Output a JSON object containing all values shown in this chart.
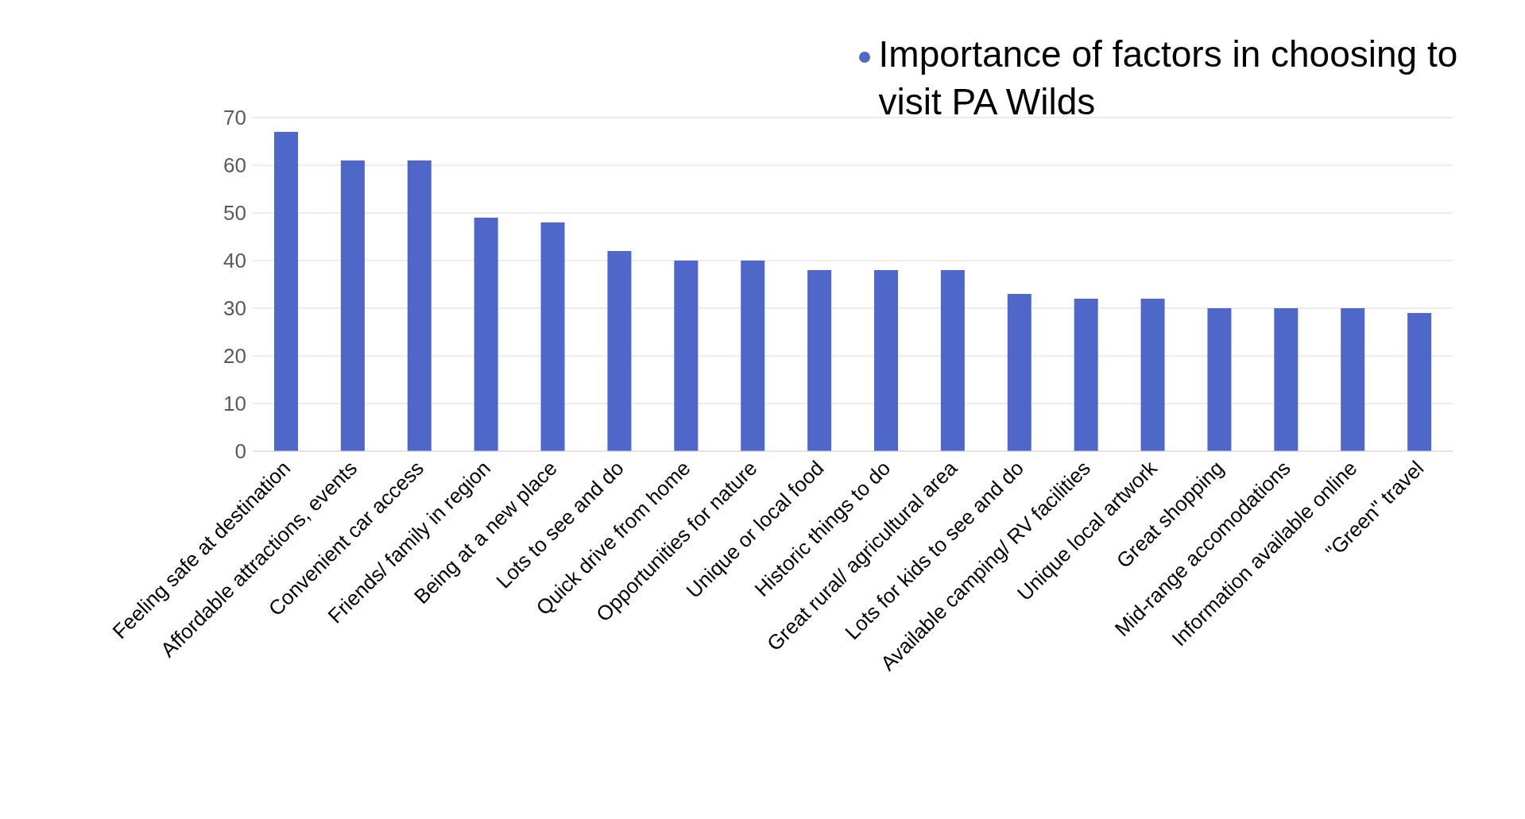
{
  "chart_data": {
    "type": "bar",
    "categories": [
      "Feeling safe at destination",
      "Affordable attractions, events",
      "Convenient car access",
      "Friends/ family in region",
      "Being at a new place",
      "Lots to see and do",
      "Quick drive from home",
      "Opportunities for nature",
      "Unique or local food",
      "Historic things to do",
      "Great rural/ agricultural area",
      "Lots for kids to see and do",
      "Available camping/ RV facilities",
      "Unique local artwork",
      "Great shopping",
      "Mid-range accomodations",
      "Information available online",
      "\"Green\" travel"
    ],
    "series": [
      {
        "name": "Importance of factors in choosing to visit PA Wilds",
        "color": "#4f67c8",
        "values": [
          67,
          61,
          61,
          49,
          48,
          42,
          40,
          40,
          38,
          38,
          38,
          33,
          32,
          32,
          30,
          30,
          30,
          29
        ]
      }
    ],
    "ylim": [
      0,
      70
    ],
    "yticks": [
      0,
      10,
      20,
      30,
      40,
      50,
      60,
      70
    ],
    "grid": "y",
    "legend": "top right"
  }
}
